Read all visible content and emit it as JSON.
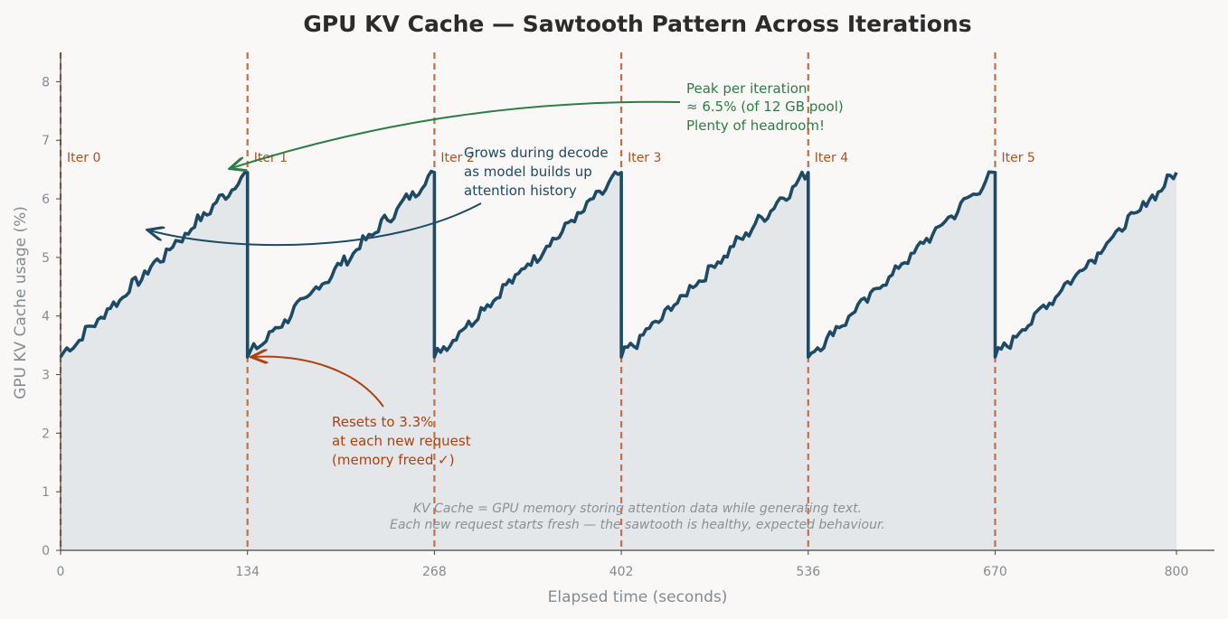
{
  "chart_data": {
    "type": "line",
    "title": "GPU KV Cache — Sawtooth Pattern Across Iterations",
    "xlabel": "Elapsed time (seconds)",
    "ylabel": "GPU KV Cache usage (%)",
    "xlim": [
      0,
      800
    ],
    "ylim": [
      0,
      8.5
    ],
    "xticks": [
      "0",
      "134",
      "268",
      "402",
      "536",
      "670",
      "800"
    ],
    "yticks": [
      "0",
      "1",
      "2",
      "3",
      "4",
      "5",
      "6",
      "7",
      "8"
    ],
    "series": [
      {
        "values_description_note": "",
        "x": [
          0,
          134,
          134,
          268,
          268,
          402,
          402,
          536,
          536,
          670,
          670,
          800
        ],
        "y": [
          3.3,
          6.45,
          3.3,
          6.45,
          3.3,
          6.45,
          3.3,
          6.45,
          3.3,
          6.45,
          3.3,
          6.45
        ]
      }
    ],
    "iteration_markers": [
      {
        "x": 0,
        "label": "Iter 0"
      },
      {
        "x": 134,
        "label": "Iter 1"
      },
      {
        "x": 268,
        "label": "Iter 2"
      },
      {
        "x": 402,
        "label": "Iter 3"
      },
      {
        "x": 536,
        "label": "Iter 4"
      },
      {
        "x": 670,
        "label": "Iter 5"
      }
    ],
    "annotations": {
      "peak": [
        "Peak per iteration",
        "≈ 6.5%  (of 12 GB pool)",
        "Plenty of headroom!"
      ],
      "grows": [
        "Grows during decode",
        "as model builds up",
        "attention history"
      ],
      "resets": [
        "Resets to 3.3%",
        "at each new request",
        "(memory freed ✓)"
      ]
    },
    "footnote": [
      "KV Cache = GPU memory storing attention data while generating text.",
      "Each new request starts fresh — the sawtooth is healthy, expected behaviour."
    ],
    "grid": false,
    "colors": {
      "line": "#1d4a66",
      "fill": "#e3e7ea",
      "marker": "#c0704a",
      "green": "#2e7d45",
      "red": "#b0400e"
    }
  }
}
